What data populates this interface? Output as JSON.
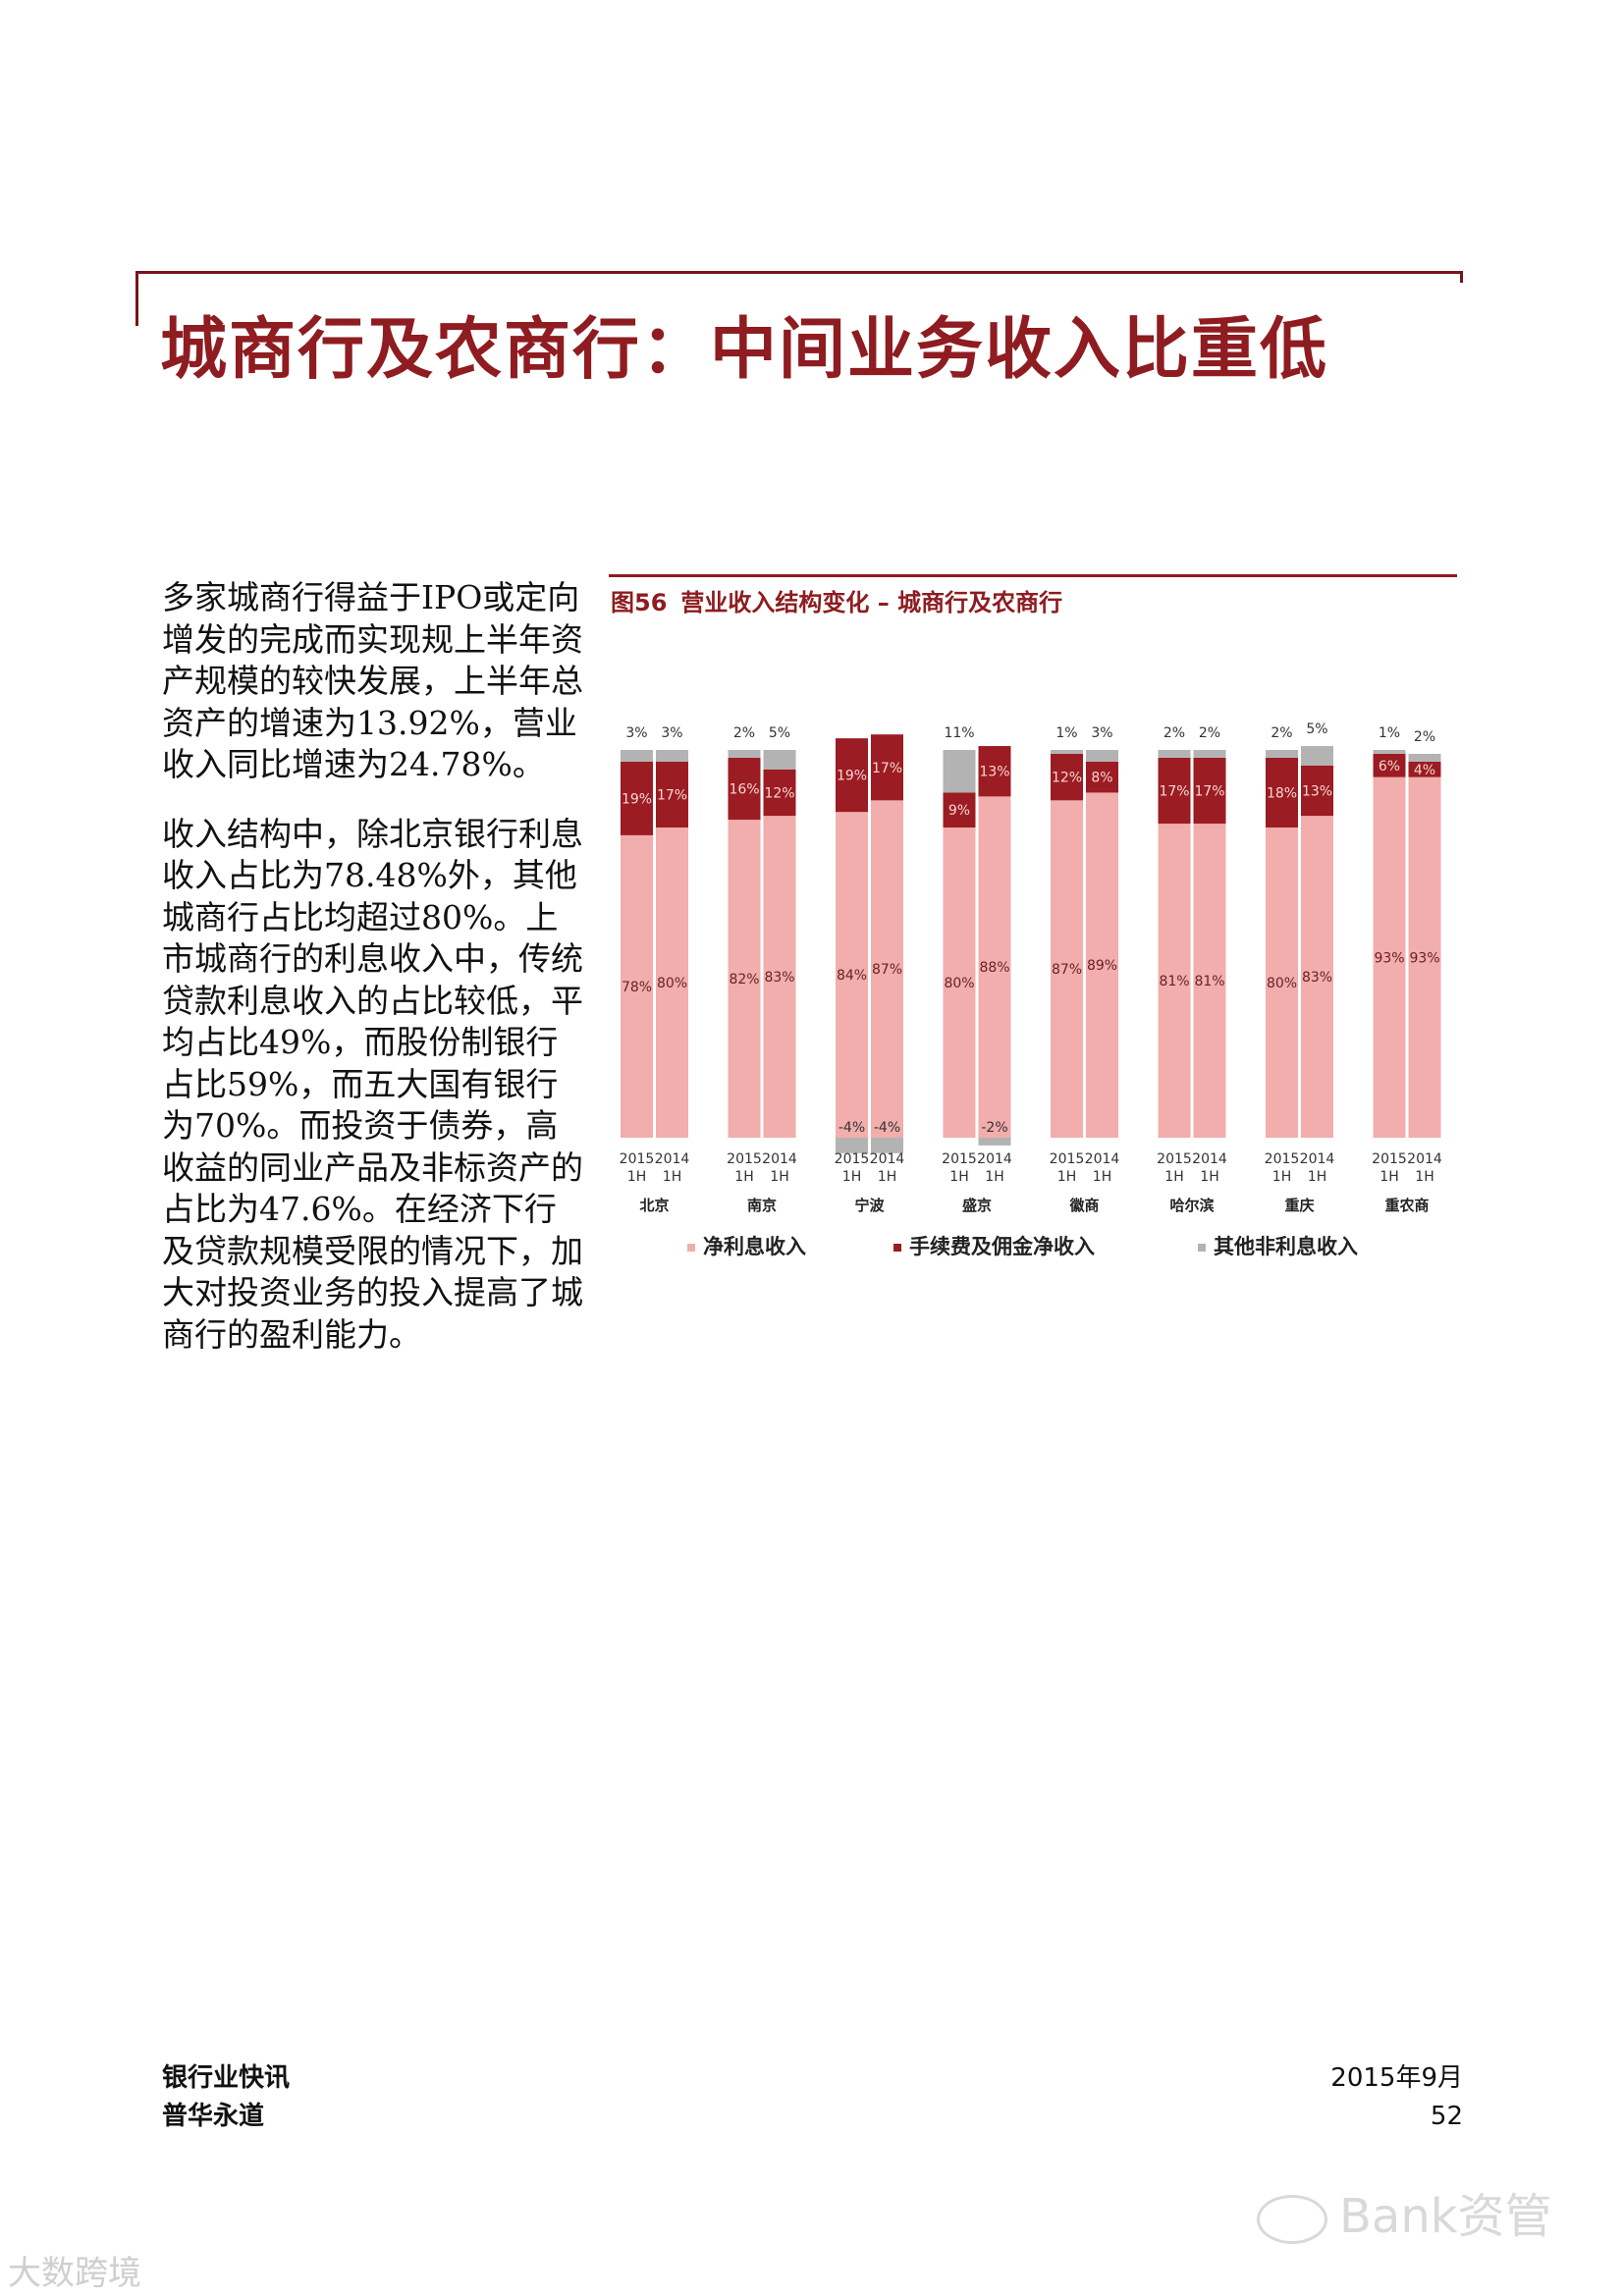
{
  "page": {
    "title": "城商行及农商行：中间业务收入比重低",
    "paragraphs": [
      "多家城商行得益于IPO或定向增发的完成而实现规上半年资产规模的较快发展，上半年总资产的增速为13.92%，营业收入同比增速为24.78%。",
      "收入结构中，除北京银行利息收入占比为78.48%外，其他城商行占比均超过80%。上市城商行的利息收入中，传统贷款利息收入的占比较低，平均占比49%，而股份制银行占比59%，而五大国有银行为70%。而投资于债券，高收益的同业产品及非标资产的占比为47.6%。在经济下行及贷款规模受限的情况下，加大对投资业务的投入提高了城商行的盈利能力。"
    ]
  },
  "figure": {
    "number": "图56",
    "title": "营业收入结构变化 – 城商行及农商行"
  },
  "chart_data": {
    "type": "bar",
    "stacked": true,
    "percent": true,
    "banks": [
      "北京",
      "南京",
      "宁波",
      "盛京",
      "徽商",
      "哈尔滨",
      "重庆",
      "重农商"
    ],
    "period_labels": [
      "2015 1H",
      "2014 1H"
    ],
    "series": [
      {
        "name": "净利息收入",
        "color": "#f2adad",
        "values": [
          [
            78,
            80
          ],
          [
            82,
            83
          ],
          [
            84,
            87
          ],
          [
            80,
            88
          ],
          [
            87,
            89
          ],
          [
            81,
            81
          ],
          [
            80,
            83
          ],
          [
            93,
            93
          ]
        ]
      },
      {
        "name": "手续费及佣金净收入",
        "color": "#9b1c22",
        "values": [
          [
            19,
            17
          ],
          [
            16,
            12
          ],
          [
            19,
            17
          ],
          [
            9,
            13
          ],
          [
            12,
            8
          ],
          [
            17,
            17
          ],
          [
            18,
            13
          ],
          [
            6,
            4
          ]
        ]
      },
      {
        "name": "其他非利息收入",
        "color": "#b3b3b3",
        "values": [
          [
            3,
            3
          ],
          [
            2,
            5
          ],
          [
            -4,
            -4
          ],
          [
            11,
            -2
          ],
          [
            1,
            3
          ],
          [
            2,
            2
          ],
          [
            2,
            5
          ],
          [
            1,
            2
          ]
        ]
      }
    ],
    "value_labels": {
      "净利息收入": [
        [
          "78%",
          "80%"
        ],
        [
          "82%",
          "83%"
        ],
        [
          "84%",
          "87%"
        ],
        [
          "80%",
          "88%"
        ],
        [
          "87%",
          "89%"
        ],
        [
          "81%",
          "81%"
        ],
        [
          "80%",
          "83%"
        ],
        [
          "93%",
          "93%"
        ]
      ],
      "手续费及佣金净收入": [
        [
          "19%",
          "17%"
        ],
        [
          "16%",
          "12%"
        ],
        [
          "19%",
          "17%"
        ],
        [
          "9%",
          "13%"
        ],
        [
          "12%",
          "8%"
        ],
        [
          "17%",
          "17%"
        ],
        [
          "18%",
          "13%"
        ],
        [
          "6%",
          "4%"
        ]
      ],
      "其他非利息收入": [
        [
          "3%",
          "3%"
        ],
        [
          "2%",
          "5%"
        ],
        [
          "-4%",
          "-4%"
        ],
        [
          "11%",
          "-2%"
        ],
        [
          "1%",
          "3%"
        ],
        [
          "2%",
          "2%"
        ],
        [
          "2%",
          "5%"
        ],
        [
          "1%",
          "2%"
        ]
      ]
    },
    "ylim": [
      -4,
      100
    ],
    "legend_position": "bottom",
    "grid": false
  },
  "footer": {
    "publication": "银行业快讯",
    "company": "普华永道",
    "date": "2015年9月",
    "page_number": "52"
  },
  "watermarks": {
    "account": "Bank资管",
    "source": "大数跨境"
  }
}
